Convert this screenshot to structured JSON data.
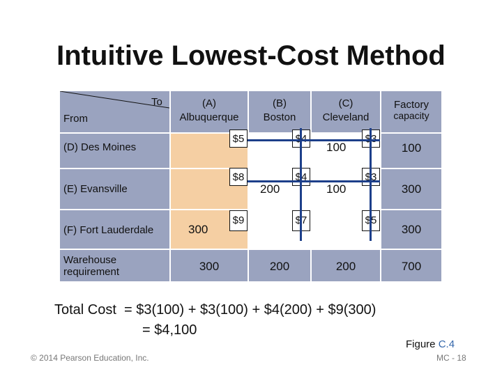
{
  "title": "Intuitive Lowest-Cost Method",
  "corner": {
    "to": "To",
    "from": "From"
  },
  "columns": [
    {
      "name": "(A)",
      "sub": "Albuquerque"
    },
    {
      "name": "(B)",
      "sub": "Boston"
    },
    {
      "name": "(C)",
      "sub": "Cleveland"
    }
  ],
  "capacity_header": {
    "line1": "Factory",
    "line2": "capacity"
  },
  "rows": [
    {
      "label": "(D) Des Moines",
      "costs": [
        "$5",
        "$4",
        "$3"
      ],
      "alloc": [
        "",
        "",
        "100"
      ],
      "capacity": "100"
    },
    {
      "label": "(E) Evansville",
      "costs": [
        "$8",
        "$4",
        "$3"
      ],
      "alloc": [
        "",
        "200",
        "100"
      ],
      "capacity": "300"
    },
    {
      "label": "(F) Fort Lauderdale",
      "costs": [
        "$9",
        "$7",
        "$5"
      ],
      "alloc": [
        "300",
        "",
        ""
      ],
      "capacity": "300"
    }
  ],
  "requirement": {
    "line1": "Warehouse",
    "line2": "requirement",
    "values": [
      "300",
      "200",
      "200"
    ],
    "total": "700"
  },
  "total_cost": {
    "line1": "Total Cost  = $3(100) + $3(100) + $4(200) + $9(300)",
    "line2": "= $4,100"
  },
  "figure": {
    "label": "Figure ",
    "number": "C.4"
  },
  "copyright": "© 2014 Pearson Education, Inc.",
  "page": "MC - 18",
  "colors": {
    "header": "#9aa3bf",
    "cost_cell": "#f5cfa3",
    "line": "#1d3f8a"
  }
}
